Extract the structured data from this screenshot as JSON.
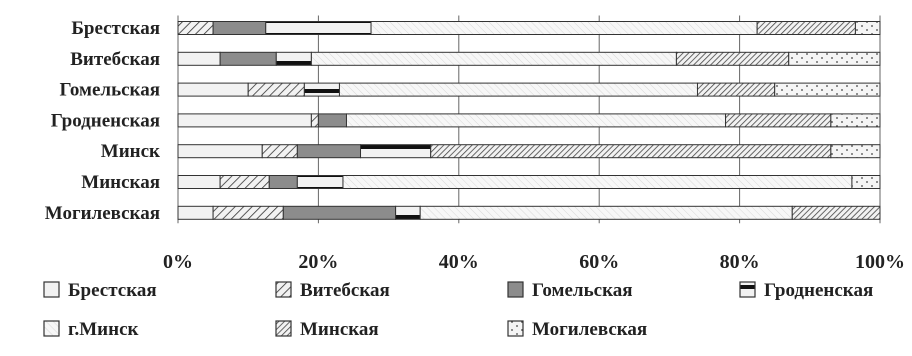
{
  "chart_data": {
    "type": "bar",
    "orientation": "horizontal",
    "stacked": "percent",
    "categories": [
      "Брестская",
      "Витебская",
      "Гомельская",
      "Гродненская",
      "Минск",
      "Минская",
      "Могилевская"
    ],
    "series": [
      {
        "name": "Брестская",
        "pattern": "white-solid",
        "values": [
          0,
          6,
          10,
          19,
          12,
          6,
          5
        ]
      },
      {
        "name": "Витебская",
        "pattern": "diagonal",
        "values": [
          5,
          0,
          8,
          1,
          5,
          7,
          10
        ]
      },
      {
        "name": "Гомельская",
        "pattern": "gray-solid",
        "values": [
          7.5,
          8,
          0,
          4,
          9,
          4,
          16
        ]
      },
      {
        "name": "Гродненская",
        "pattern": "horizontal-black",
        "values": [
          15,
          5,
          5,
          0,
          10,
          6.5,
          3.5
        ]
      },
      {
        "name": "г.Минск",
        "pattern": "white-light-stripes",
        "values": [
          55,
          52,
          51,
          54,
          0,
          72.5,
          53
        ]
      },
      {
        "name": "Минская",
        "pattern": "dense-diagonal",
        "values": [
          14,
          16,
          11,
          15,
          57,
          0,
          12.5
        ]
      },
      {
        "name": "Могилевская",
        "pattern": "dots",
        "values": [
          3.5,
          13,
          15,
          7,
          7,
          4,
          0
        ]
      }
    ],
    "xlim": [
      0,
      100
    ],
    "x_ticks": [
      "0%",
      "20%",
      "40%",
      "60%",
      "80%",
      "100%"
    ],
    "grid": "vertical-gridlines",
    "legend_position": "bottom"
  },
  "colors": {
    "white": "#f2f2f2",
    "gray": "#8c8c8c",
    "black": "#111111",
    "border": "#333333"
  }
}
